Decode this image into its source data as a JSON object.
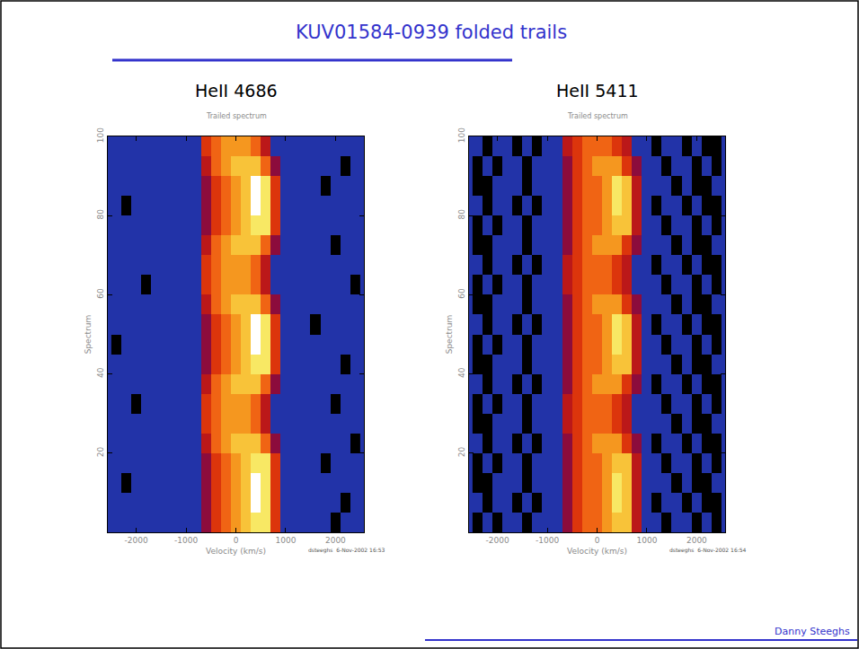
{
  "title": "KUV01584-0939 folded trails",
  "author": "Danny Steeghs",
  "chart_data": [
    {
      "type": "heatmap",
      "title": "HeII 4686",
      "subtitle": "Trailed spectrum",
      "footer": "dsteeghs  6-Nov-2002 16:53",
      "xlabel": "Velocity (km/s)",
      "ylabel": "Spectrum",
      "xlim": [
        -2570,
        2570
      ],
      "ylim": [
        0,
        100
      ],
      "xticks": [
        -2000,
        -1000,
        0,
        1000,
        2000
      ],
      "yticks": [
        20,
        40,
        60,
        80,
        100
      ],
      "zlim": [
        0,
        10
      ],
      "x": [
        -2400,
        -2200,
        -2000,
        -1800,
        -1600,
        -1400,
        -1200,
        -1000,
        -800,
        -600,
        -400,
        -200,
        0,
        200,
        400,
        600,
        800,
        1000,
        1200,
        1400,
        1600,
        1800,
        2000,
        2200,
        2400
      ],
      "y": [
        2.5,
        7.5,
        12.5,
        17.5,
        22.5,
        27.5,
        32.5,
        37.5,
        42.5,
        47.5,
        52.5,
        57.5,
        62.5,
        67.5,
        72.5,
        77.5,
        82.5,
        87.5,
        92.5,
        97.5
      ],
      "z": [
        [
          1,
          1,
          1,
          1,
          1,
          1,
          1,
          1,
          1,
          3,
          5,
          6,
          7,
          8,
          9,
          9,
          5,
          2,
          1,
          1,
          1,
          1,
          0,
          1,
          1
        ],
        [
          1,
          1,
          1,
          1,
          1,
          1,
          1,
          1,
          1,
          3,
          5,
          6,
          7,
          8,
          10,
          9,
          5,
          2,
          1,
          1,
          1,
          1,
          1,
          0,
          1
        ],
        [
          1,
          0,
          1,
          1,
          1,
          1,
          1,
          1,
          1,
          3,
          5,
          6,
          7,
          8,
          10,
          9,
          5,
          2,
          1,
          1,
          1,
          1,
          1,
          1,
          1
        ],
        [
          1,
          1,
          1,
          1,
          1,
          1,
          1,
          1,
          1,
          3,
          5,
          6,
          7,
          8,
          9,
          9,
          5,
          2,
          1,
          1,
          1,
          0,
          1,
          1,
          1
        ],
        [
          1,
          1,
          1,
          1,
          1,
          1,
          1,
          1,
          1,
          4,
          6,
          7,
          8,
          8,
          8,
          6,
          3,
          1,
          1,
          1,
          1,
          1,
          1,
          1,
          0
        ],
        [
          1,
          1,
          1,
          1,
          1,
          1,
          1,
          1,
          2,
          5,
          6,
          7,
          7,
          7,
          6,
          4,
          2,
          1,
          1,
          1,
          1,
          1,
          1,
          1,
          1
        ],
        [
          1,
          1,
          0,
          1,
          1,
          1,
          1,
          1,
          2,
          5,
          6,
          7,
          7,
          7,
          6,
          4,
          2,
          1,
          1,
          1,
          1,
          1,
          0,
          1,
          1
        ],
        [
          1,
          1,
          1,
          1,
          1,
          1,
          1,
          1,
          1,
          4,
          6,
          7,
          8,
          8,
          8,
          6,
          3,
          1,
          1,
          1,
          1,
          1,
          1,
          1,
          1
        ],
        [
          1,
          1,
          1,
          1,
          1,
          1,
          1,
          1,
          1,
          3,
          5,
          6,
          7,
          8,
          9,
          9,
          5,
          2,
          1,
          1,
          1,
          1,
          1,
          0,
          1
        ],
        [
          0,
          1,
          1,
          1,
          1,
          1,
          1,
          1,
          1,
          3,
          5,
          6,
          7,
          8,
          10,
          9,
          5,
          2,
          1,
          1,
          1,
          1,
          1,
          1,
          1
        ],
        [
          1,
          1,
          1,
          1,
          1,
          1,
          1,
          1,
          1,
          3,
          5,
          6,
          7,
          8,
          10,
          9,
          5,
          2,
          1,
          1,
          0,
          1,
          1,
          1,
          1
        ],
        [
          1,
          1,
          1,
          1,
          1,
          1,
          1,
          1,
          1,
          4,
          6,
          7,
          8,
          8,
          8,
          6,
          3,
          1,
          1,
          1,
          1,
          1,
          1,
          1,
          1
        ],
        [
          1,
          1,
          1,
          0,
          1,
          1,
          1,
          1,
          2,
          5,
          6,
          7,
          7,
          7,
          6,
          4,
          2,
          1,
          1,
          1,
          1,
          1,
          1,
          1,
          0
        ],
        [
          1,
          1,
          1,
          1,
          1,
          1,
          1,
          1,
          2,
          5,
          6,
          7,
          7,
          7,
          6,
          4,
          2,
          1,
          1,
          1,
          1,
          1,
          1,
          1,
          1
        ],
        [
          1,
          1,
          1,
          1,
          1,
          1,
          1,
          1,
          1,
          4,
          6,
          7,
          8,
          8,
          8,
          6,
          3,
          1,
          1,
          1,
          1,
          1,
          0,
          1,
          1
        ],
        [
          1,
          1,
          1,
          1,
          1,
          1,
          1,
          1,
          1,
          3,
          5,
          6,
          7,
          8,
          9,
          9,
          5,
          2,
          1,
          1,
          1,
          1,
          1,
          1,
          1
        ],
        [
          1,
          0,
          1,
          1,
          1,
          1,
          1,
          1,
          1,
          3,
          5,
          6,
          7,
          8,
          10,
          9,
          5,
          2,
          1,
          1,
          1,
          1,
          1,
          1,
          1
        ],
        [
          1,
          1,
          1,
          1,
          1,
          1,
          1,
          1,
          1,
          3,
          5,
          6,
          7,
          8,
          10,
          9,
          5,
          2,
          1,
          1,
          1,
          0,
          1,
          1,
          1
        ],
        [
          1,
          1,
          1,
          1,
          1,
          1,
          1,
          1,
          1,
          4,
          6,
          7,
          8,
          8,
          8,
          6,
          3,
          1,
          1,
          1,
          1,
          1,
          1,
          0,
          1
        ],
        [
          1,
          1,
          1,
          1,
          1,
          1,
          1,
          1,
          2,
          5,
          6,
          7,
          7,
          7,
          6,
          4,
          2,
          1,
          1,
          1,
          1,
          1,
          1,
          1,
          1
        ]
      ]
    },
    {
      "type": "heatmap",
      "title": "HeII 5411",
      "subtitle": "Trailed spectrum",
      "footer": "dsteeghs  6-Nov-2002 16:54",
      "xlabel": "Velocity (km/s)",
      "ylabel": "Spectrum",
      "xlim": [
        -2570,
        2570
      ],
      "ylim": [
        0,
        100
      ],
      "xticks": [
        -2000,
        -1000,
        0,
        1000,
        2000
      ],
      "yticks": [
        20,
        40,
        60,
        80,
        100
      ],
      "zlim": [
        0,
        10
      ],
      "x": [
        -2400,
        -2200,
        -2000,
        -1800,
        -1600,
        -1400,
        -1200,
        -1000,
        -800,
        -600,
        -400,
        -200,
        0,
        200,
        400,
        600,
        800,
        1000,
        1200,
        1400,
        1600,
        1800,
        2000,
        2200,
        2400
      ],
      "y": [
        2.5,
        7.5,
        12.5,
        17.5,
        22.5,
        27.5,
        32.5,
        37.5,
        42.5,
        47.5,
        52.5,
        57.5,
        62.5,
        67.5,
        72.5,
        77.5,
        82.5,
        87.5,
        92.5,
        97.5
      ],
      "z": [
        [
          0,
          1,
          0,
          1,
          1,
          0,
          1,
          1,
          1,
          3,
          5,
          6,
          6,
          7,
          8,
          8,
          4,
          2,
          1,
          0,
          1,
          1,
          0,
          1,
          0
        ],
        [
          1,
          0,
          1,
          1,
          0,
          1,
          0,
          1,
          1,
          3,
          5,
          6,
          6,
          7,
          9,
          8,
          4,
          2,
          0,
          1,
          1,
          0,
          1,
          0,
          0
        ],
        [
          0,
          0,
          1,
          1,
          1,
          0,
          1,
          1,
          1,
          3,
          5,
          6,
          6,
          7,
          9,
          8,
          4,
          2,
          1,
          1,
          0,
          1,
          0,
          0,
          1
        ],
        [
          0,
          1,
          0,
          1,
          1,
          0,
          1,
          1,
          1,
          3,
          5,
          6,
          6,
          7,
          8,
          8,
          4,
          1,
          1,
          0,
          1,
          1,
          0,
          1,
          0
        ],
        [
          1,
          0,
          1,
          1,
          0,
          1,
          0,
          1,
          1,
          3,
          5,
          6,
          7,
          7,
          7,
          5,
          3,
          1,
          0,
          1,
          1,
          0,
          1,
          0,
          0
        ],
        [
          0,
          0,
          1,
          1,
          1,
          0,
          1,
          1,
          2,
          4,
          5,
          6,
          6,
          6,
          5,
          4,
          2,
          1,
          1,
          1,
          0,
          1,
          0,
          0,
          1
        ],
        [
          0,
          1,
          0,
          1,
          1,
          0,
          1,
          1,
          2,
          4,
          5,
          6,
          6,
          6,
          5,
          4,
          2,
          1,
          1,
          0,
          1,
          1,
          0,
          1,
          0
        ],
        [
          1,
          0,
          1,
          1,
          0,
          1,
          0,
          1,
          1,
          3,
          5,
          6,
          7,
          7,
          7,
          5,
          3,
          1,
          0,
          1,
          1,
          0,
          1,
          0,
          0
        ],
        [
          0,
          0,
          1,
          1,
          1,
          0,
          1,
          1,
          1,
          3,
          5,
          6,
          6,
          7,
          8,
          8,
          4,
          2,
          1,
          1,
          0,
          1,
          0,
          0,
          1
        ],
        [
          0,
          1,
          0,
          1,
          1,
          0,
          1,
          1,
          1,
          3,
          5,
          6,
          6,
          7,
          9,
          8,
          4,
          2,
          1,
          0,
          1,
          1,
          0,
          1,
          0
        ],
        [
          1,
          0,
          1,
          1,
          0,
          1,
          0,
          1,
          1,
          3,
          5,
          6,
          6,
          7,
          9,
          8,
          4,
          2,
          0,
          1,
          1,
          0,
          1,
          0,
          0
        ],
        [
          0,
          0,
          1,
          1,
          1,
          0,
          1,
          1,
          1,
          3,
          5,
          6,
          7,
          7,
          7,
          5,
          3,
          1,
          1,
          1,
          0,
          1,
          0,
          0,
          1
        ],
        [
          0,
          1,
          0,
          1,
          1,
          0,
          1,
          1,
          2,
          4,
          5,
          6,
          6,
          6,
          5,
          4,
          2,
          1,
          1,
          0,
          1,
          1,
          0,
          1,
          0
        ],
        [
          1,
          0,
          1,
          1,
          0,
          1,
          0,
          1,
          2,
          4,
          5,
          6,
          6,
          6,
          5,
          4,
          2,
          1,
          0,
          1,
          1,
          0,
          1,
          0,
          0
        ],
        [
          0,
          0,
          1,
          1,
          1,
          0,
          1,
          1,
          1,
          3,
          5,
          6,
          7,
          7,
          7,
          5,
          3,
          1,
          1,
          1,
          0,
          1,
          0,
          0,
          1
        ],
        [
          0,
          1,
          0,
          1,
          1,
          0,
          1,
          1,
          1,
          3,
          5,
          6,
          6,
          7,
          8,
          8,
          4,
          2,
          1,
          0,
          1,
          1,
          0,
          1,
          0
        ],
        [
          1,
          0,
          1,
          1,
          0,
          1,
          0,
          1,
          1,
          3,
          5,
          6,
          6,
          7,
          9,
          8,
          4,
          2,
          0,
          1,
          1,
          0,
          1,
          0,
          0
        ],
        [
          0,
          0,
          1,
          1,
          1,
          0,
          1,
          1,
          1,
          3,
          5,
          6,
          6,
          7,
          9,
          8,
          4,
          2,
          1,
          1,
          0,
          1,
          0,
          0,
          1
        ],
        [
          0,
          1,
          0,
          1,
          1,
          0,
          1,
          1,
          1,
          3,
          5,
          6,
          7,
          7,
          7,
          5,
          3,
          1,
          1,
          0,
          1,
          1,
          0,
          1,
          0
        ],
        [
          1,
          0,
          1,
          1,
          0,
          1,
          0,
          1,
          2,
          4,
          5,
          6,
          6,
          6,
          5,
          4,
          2,
          1,
          0,
          1,
          1,
          0,
          1,
          0,
          0
        ]
      ]
    }
  ]
}
